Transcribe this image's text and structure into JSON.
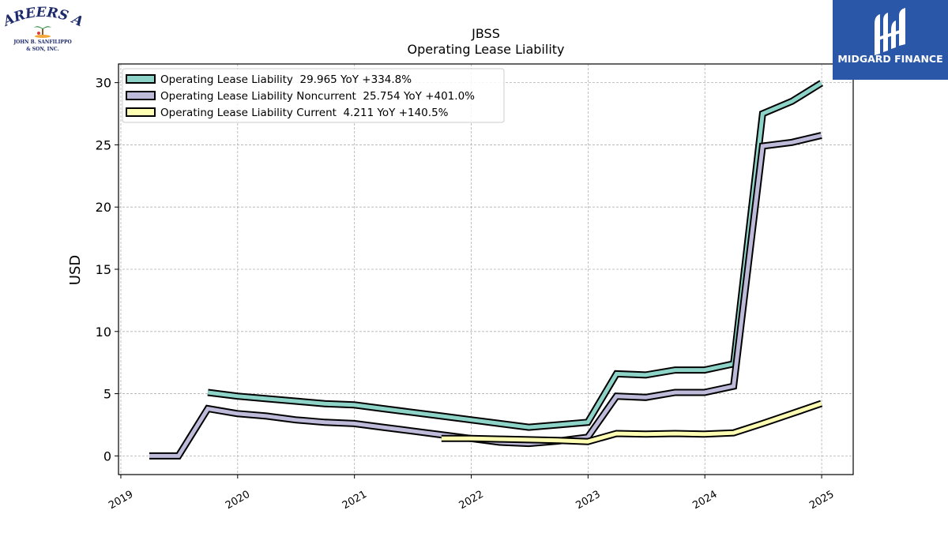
{
  "logos": {
    "left": {
      "line1": "CAREERS AT",
      "line2": "JOHN B. SANFILIPPO",
      "line3": "& SON, INC."
    },
    "right": {
      "text": "MIDGARD FINANCE"
    }
  },
  "chart_data": {
    "type": "line",
    "title": "JBSS",
    "subtitle": "Operating Lease Liability",
    "ylabel": "USD",
    "xlabel": "",
    "ylim": [
      -1.5,
      31.5
    ],
    "xlim": [
      2018.98,
      2025.27
    ],
    "yticks": [
      "0",
      "5",
      "10",
      "15",
      "20",
      "25",
      "30"
    ],
    "xticks": [
      "2019",
      "2020",
      "2021",
      "2022",
      "2023",
      "2024",
      "2025"
    ],
    "grid": true,
    "legend_position": "top-left",
    "series": [
      {
        "name": "Operating Lease Liability  29.965 YoY +334.8%",
        "color": "#8dd3c7",
        "x": [
          "2019-09-30",
          "2019-12-31",
          "2020-03-31",
          "2020-06-30",
          "2020-09-30",
          "2020-12-31",
          "2021-03-31",
          "2021-06-30",
          "2021-09-30",
          "2021-12-31",
          "2022-03-31",
          "2022-06-30",
          "2022-09-30",
          "2022-12-31",
          "2023-03-31",
          "2023-06-30",
          "2023-09-30",
          "2023-12-31",
          "2024-03-31",
          "2024-06-30",
          "2024-09-30",
          "2024-12-31"
        ],
        "y": [
          5.1,
          4.8,
          4.6,
          4.4,
          4.2,
          4.1,
          3.8,
          3.5,
          3.2,
          2.9,
          2.6,
          2.3,
          2.5,
          2.7,
          6.6,
          6.5,
          6.9,
          6.9,
          7.4,
          27.5,
          28.5,
          29.965
        ]
      },
      {
        "name": "Operating Lease Liability Noncurrent  25.754 YoY +401.0%",
        "color": "#bebada",
        "x": [
          "2019-03-31",
          "2019-06-30",
          "2019-09-30",
          "2019-12-31",
          "2020-03-31",
          "2020-06-30",
          "2020-09-30",
          "2020-12-31",
          "2021-03-31",
          "2021-06-30",
          "2021-09-30",
          "2021-12-31",
          "2022-03-31",
          "2022-06-30",
          "2022-09-30",
          "2022-12-31",
          "2023-03-31",
          "2023-06-30",
          "2023-09-30",
          "2023-12-31",
          "2024-03-31",
          "2024-06-30",
          "2024-09-30",
          "2024-12-31"
        ],
        "y": [
          0.0,
          0.0,
          3.8,
          3.4,
          3.2,
          2.9,
          2.7,
          2.6,
          2.3,
          2.0,
          1.7,
          1.4,
          1.1,
          1.0,
          1.2,
          1.5,
          4.8,
          4.7,
          5.1,
          5.1,
          5.6,
          24.9,
          25.2,
          25.754
        ]
      },
      {
        "name": "Operating Lease Liability Current  4.211 YoY +140.5%",
        "color": "#ffffb3",
        "x": [
          "2021-09-30",
          "2021-12-31",
          "2022-03-31",
          "2022-06-30",
          "2022-09-30",
          "2022-12-31",
          "2023-03-31",
          "2023-06-30",
          "2023-09-30",
          "2023-12-31",
          "2024-03-31",
          "2024-06-30",
          "2024-09-30",
          "2024-12-31"
        ],
        "y": [
          1.4,
          1.4,
          1.35,
          1.3,
          1.25,
          1.15,
          1.8,
          1.75,
          1.8,
          1.75,
          1.85,
          2.6,
          3.4,
          4.211
        ]
      }
    ]
  }
}
